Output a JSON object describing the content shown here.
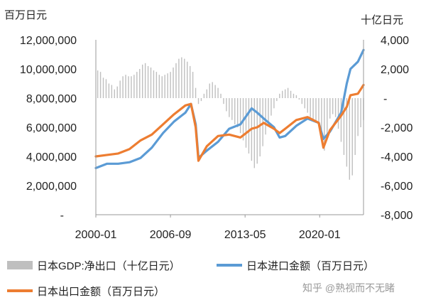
{
  "chart_data": {
    "type": "line",
    "left_unit": "百万日元",
    "right_unit": "十亿日元",
    "x_ticks": [
      "2000-01",
      "2006-09",
      "2013-05",
      "2020-01"
    ],
    "x_range": [
      "2000-01",
      "2023-12"
    ],
    "y_left": {
      "ticks": [
        "12,000,000",
        "10,000,000",
        "8,000,000",
        "6,000,000",
        "4,000,000",
        "2,000,000",
        "-"
      ],
      "range": [
        0,
        12000000
      ]
    },
    "y_right": {
      "ticks": [
        "4,000",
        "2,000",
        "-",
        "-2,000",
        "-4,000",
        "-6,000",
        "-8,000"
      ],
      "range": [
        -8000,
        4000
      ]
    },
    "grid": false,
    "legend_position": "bottom",
    "series": [
      {
        "name": "日本GDP:净出口（十亿日元）",
        "type": "bar",
        "axis": "right",
        "color": "#bfbfbf",
        "x": [
          "2000-03",
          "2000-06",
          "2000-09",
          "2000-12",
          "2001-03",
          "2001-06",
          "2001-09",
          "2001-12",
          "2002-03",
          "2002-06",
          "2002-09",
          "2002-12",
          "2003-03",
          "2003-06",
          "2003-09",
          "2003-12",
          "2004-03",
          "2004-06",
          "2004-09",
          "2004-12",
          "2005-03",
          "2005-06",
          "2005-09",
          "2005-12",
          "2006-03",
          "2006-06",
          "2006-09",
          "2006-12",
          "2007-03",
          "2007-06",
          "2007-09",
          "2007-12",
          "2008-03",
          "2008-06",
          "2008-09",
          "2008-12",
          "2009-03",
          "2009-06",
          "2009-09",
          "2009-12",
          "2010-03",
          "2010-06",
          "2010-09",
          "2010-12",
          "2011-03",
          "2011-06",
          "2011-09",
          "2011-12",
          "2012-03",
          "2012-06",
          "2012-09",
          "2012-12",
          "2013-03",
          "2013-06",
          "2013-09",
          "2013-12",
          "2014-03",
          "2014-06",
          "2014-09",
          "2014-12",
          "2015-03",
          "2015-06",
          "2015-09",
          "2015-12",
          "2016-03",
          "2016-06",
          "2016-09",
          "2016-12",
          "2017-03",
          "2017-06",
          "2017-09",
          "2017-12",
          "2018-03",
          "2018-06",
          "2018-09",
          "2018-12",
          "2019-03",
          "2019-06",
          "2019-09",
          "2019-12",
          "2020-03",
          "2020-06",
          "2020-09",
          "2020-12",
          "2021-03",
          "2021-06",
          "2021-09",
          "2021-12",
          "2022-03",
          "2022-06",
          "2022-09",
          "2022-12",
          "2023-03",
          "2023-06",
          "2023-09",
          "2023-12"
        ],
        "values": [
          1900,
          1800,
          1400,
          1300,
          1000,
          900,
          600,
          800,
          1200,
          1500,
          1600,
          1500,
          1500,
          1600,
          1800,
          2000,
          2300,
          2400,
          2200,
          2100,
          1900,
          1800,
          1600,
          1500,
          1600,
          1700,
          1800,
          2100,
          2400,
          2700,
          2800,
          2700,
          2500,
          2200,
          1800,
          700,
          -400,
          -200,
          300,
          600,
          1000,
          1100,
          900,
          700,
          300,
          -400,
          -900,
          -1300,
          -1500,
          -1800,
          -2000,
          -2400,
          -2900,
          -3400,
          -3800,
          -4300,
          -4800,
          -4500,
          -4000,
          -3300,
          -2500,
          -1800,
          -1200,
          -700,
          -200,
          300,
          500,
          600,
          700,
          500,
          300,
          200,
          -100,
          -400,
          -700,
          -1000,
          -1300,
          -1500,
          -1700,
          -1800,
          -2200,
          -3600,
          -2600,
          -1400,
          -1100,
          -1300,
          -2100,
          -3000,
          -3900,
          -4700,
          -5600,
          -5300,
          -3900,
          -2600,
          -2000,
          -1500
        ]
      },
      {
        "name": "日本进口金额（百万日元）",
        "type": "line",
        "axis": "left",
        "color": "#5b9bd5",
        "x": [
          "2000-01",
          "2001-01",
          "2002-01",
          "2003-01",
          "2004-01",
          "2005-01",
          "2006-01",
          "2007-01",
          "2008-01",
          "2008-07",
          "2008-12",
          "2009-03",
          "2009-12",
          "2010-12",
          "2011-12",
          "2012-12",
          "2013-12",
          "2014-06",
          "2015-01",
          "2015-12",
          "2016-06",
          "2016-12",
          "2017-12",
          "2018-12",
          "2019-12",
          "2020-05",
          "2020-12",
          "2021-12",
          "2022-06",
          "2022-10",
          "2023-06",
          "2023-12"
        ],
        "values": [
          3200000,
          3500000,
          3500000,
          3600000,
          3900000,
          4600000,
          5600000,
          6400000,
          7000000,
          7600000,
          6200000,
          3900000,
          4400000,
          5000000,
          5900000,
          6200000,
          7300000,
          7000000,
          6600000,
          6000000,
          5300000,
          5400000,
          6100000,
          6600000,
          6300000,
          5200000,
          5700000,
          7000000,
          9000000,
          10000000,
          10500000,
          11300000
        ]
      },
      {
        "name": "日本出口金额（百万日元）",
        "type": "line",
        "axis": "left",
        "color": "#ed7d31",
        "x": [
          "2000-01",
          "2001-01",
          "2002-01",
          "2003-01",
          "2004-01",
          "2005-01",
          "2006-01",
          "2007-01",
          "2008-01",
          "2008-07",
          "2008-12",
          "2009-03",
          "2009-12",
          "2010-12",
          "2011-12",
          "2012-12",
          "2013-12",
          "2014-06",
          "2015-01",
          "2015-12",
          "2016-06",
          "2016-12",
          "2017-12",
          "2018-12",
          "2019-12",
          "2020-05",
          "2020-12",
          "2021-12",
          "2022-06",
          "2022-10",
          "2023-06",
          "2023-12"
        ],
        "values": [
          4000000,
          4100000,
          4200000,
          4500000,
          5100000,
          5500000,
          6200000,
          6900000,
          7500000,
          7600000,
          6000000,
          3700000,
          4700000,
          5400000,
          5500000,
          5300000,
          5900000,
          6000000,
          6300000,
          5900000,
          5600000,
          5900000,
          6500000,
          6700000,
          6300000,
          4600000,
          5800000,
          6800000,
          7400000,
          8200000,
          8300000,
          8900000
        ]
      }
    ]
  },
  "watermark": "知乎 @熟视而不无睹"
}
